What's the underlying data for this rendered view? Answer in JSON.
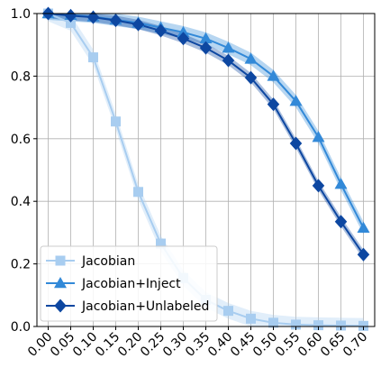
{
  "chart_data": {
    "type": "line",
    "title": "",
    "xlabel": "",
    "ylabel": "",
    "x": [
      0.0,
      0.05,
      0.1,
      0.15,
      0.2,
      0.25,
      0.3,
      0.35,
      0.4,
      0.45,
      0.5,
      0.55,
      0.6,
      0.65,
      0.7
    ],
    "x_tick_labels": [
      "0.00",
      "0.05",
      "0.10",
      "0.15",
      "0.20",
      "0.25",
      "0.30",
      "0.35",
      "0.40",
      "0.45",
      "0.50",
      "0.55",
      "0.60",
      "0.65",
      "0.70"
    ],
    "y_ticks": [
      0.0,
      0.2,
      0.4,
      0.6,
      0.8,
      1.0
    ],
    "y_tick_labels": [
      "0.0",
      "0.2",
      "0.4",
      "0.6",
      "0.8",
      "1.0"
    ],
    "xlim": [
      -0.025,
      0.725
    ],
    "ylim": [
      0.0,
      1.0
    ],
    "grid": true,
    "legend_position": "lower-left",
    "series": [
      {
        "name": "Jacobian",
        "marker": "square",
        "color": "#a8cdf0",
        "values": [
          1.0,
          0.97,
          0.86,
          0.655,
          0.43,
          0.265,
          0.155,
          0.085,
          0.05,
          0.025,
          0.012,
          0.006,
          0.004,
          0.003,
          0.002
        ],
        "band": 0.025
      },
      {
        "name": "Jacobian+Inject",
        "marker": "triangle",
        "color": "#3289d8",
        "values": [
          1.0,
          0.995,
          0.99,
          0.98,
          0.97,
          0.955,
          0.94,
          0.92,
          0.89,
          0.855,
          0.8,
          0.72,
          0.605,
          0.455,
          0.315
        ],
        "band": 0.02
      },
      {
        "name": "Jacobian+Unlabeled",
        "marker": "diamond",
        "color": "#0d47a1",
        "values": [
          1.0,
          0.993,
          0.988,
          0.978,
          0.965,
          0.945,
          0.92,
          0.89,
          0.85,
          0.795,
          0.71,
          0.585,
          0.45,
          0.335,
          0.23
        ],
        "band": 0.015
      }
    ]
  }
}
